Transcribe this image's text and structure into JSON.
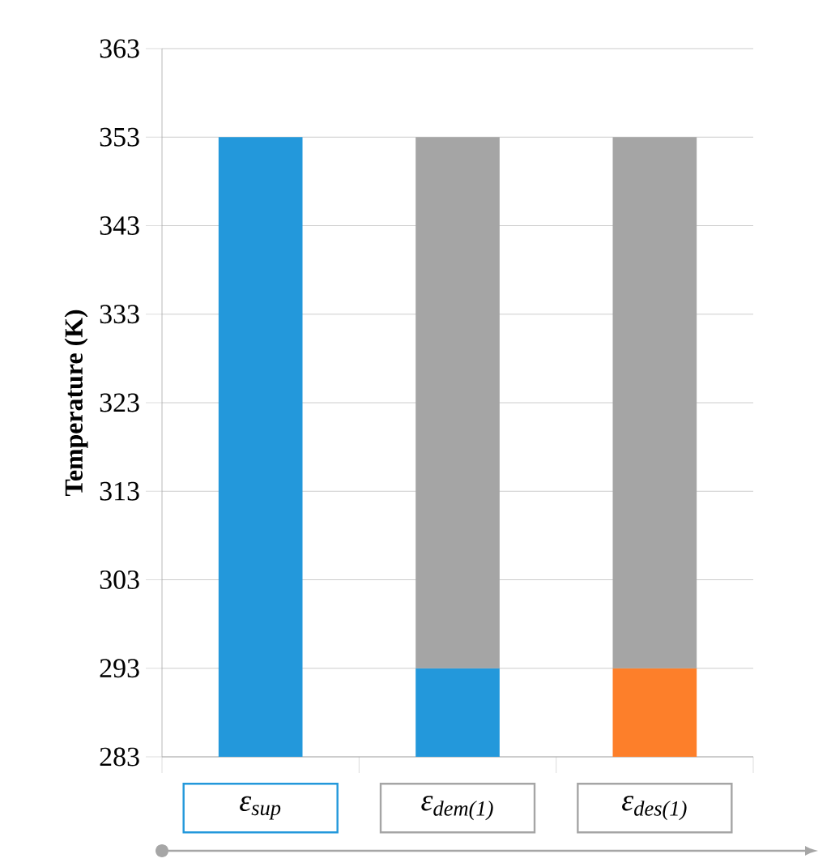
{
  "chart_data": {
    "type": "bar",
    "ylabel": "Temperature (K)",
    "categories": [
      "ε$_{sup}$",
      "ε$_{dem(1)}$",
      "ε$_{des(1)}$"
    ],
    "series": [
      {
        "colors": [
          "#2398db",
          "#2398db",
          "#fd7f2a"
        ],
        "base": [
          283,
          283,
          283
        ],
        "values": [
          70,
          10,
          10
        ]
      },
      {
        "color": "#a5a5a5",
        "base": [
          null,
          293,
          293
        ],
        "values": [
          null,
          60,
          60
        ]
      }
    ],
    "ylim": [
      283,
      363
    ],
    "yticks": [
      283,
      293,
      303,
      313,
      323,
      333,
      343,
      353,
      363
    ],
    "grid": "y"
  }
}
